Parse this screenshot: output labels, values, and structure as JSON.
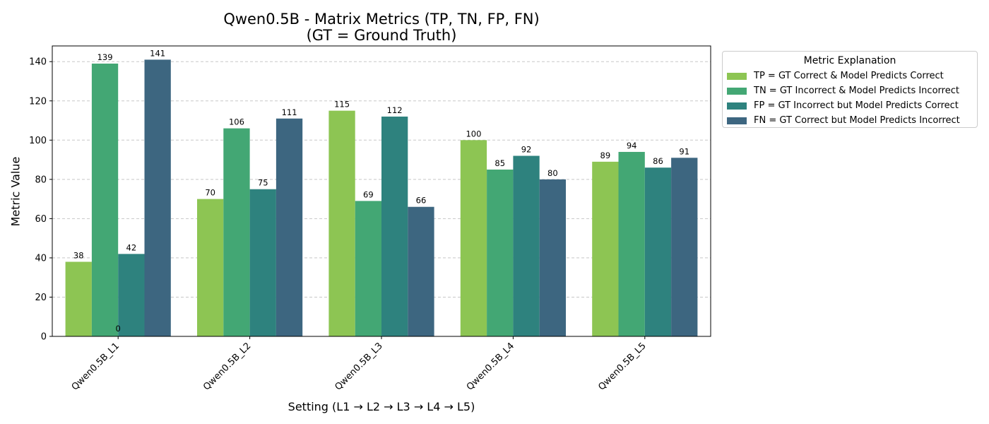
{
  "chart_data": {
    "type": "bar",
    "title_line1": "Qwen0.5B - Matrix Metrics (TP, TN, FP, FN)",
    "title_line2": "(GT = Ground Truth)",
    "xlabel": "Setting (L1 → L2 → L3 → L4 → L5)",
    "ylabel": "Metric Value",
    "categories": [
      "Qwen0.5B_L1",
      "Qwen0.5B_L2",
      "Qwen0.5B_L3",
      "Qwen0.5B_L4",
      "Qwen0.5B_L5"
    ],
    "ylim": [
      0,
      148
    ],
    "yticks": [
      0,
      20,
      40,
      60,
      80,
      100,
      120,
      140
    ],
    "grid": "y-dashed",
    "legend_title": "Metric Explanation",
    "legend_position": "outside-right",
    "extra_annotation": {
      "label": "0",
      "category": "Qwen0.5B_L1",
      "y": 0
    },
    "series": [
      {
        "name": "TP = GT Correct & Model Predicts Correct",
        "color": "#8dc553",
        "values": [
          38,
          70,
          115,
          100,
          89
        ]
      },
      {
        "name": "TN = GT Incorrect & Model Predicts Incorrect",
        "color": "#43a774",
        "values": [
          139,
          106,
          69,
          85,
          94
        ]
      },
      {
        "name": "FP = GT Incorrect but Model Predicts Correct",
        "color": "#2e827e",
        "values": [
          42,
          75,
          112,
          92,
          86
        ]
      },
      {
        "name": "FN = GT Correct but Model Predicts Incorrect",
        "color": "#3d6680",
        "values": [
          141,
          111,
          66,
          80,
          91
        ]
      }
    ]
  }
}
